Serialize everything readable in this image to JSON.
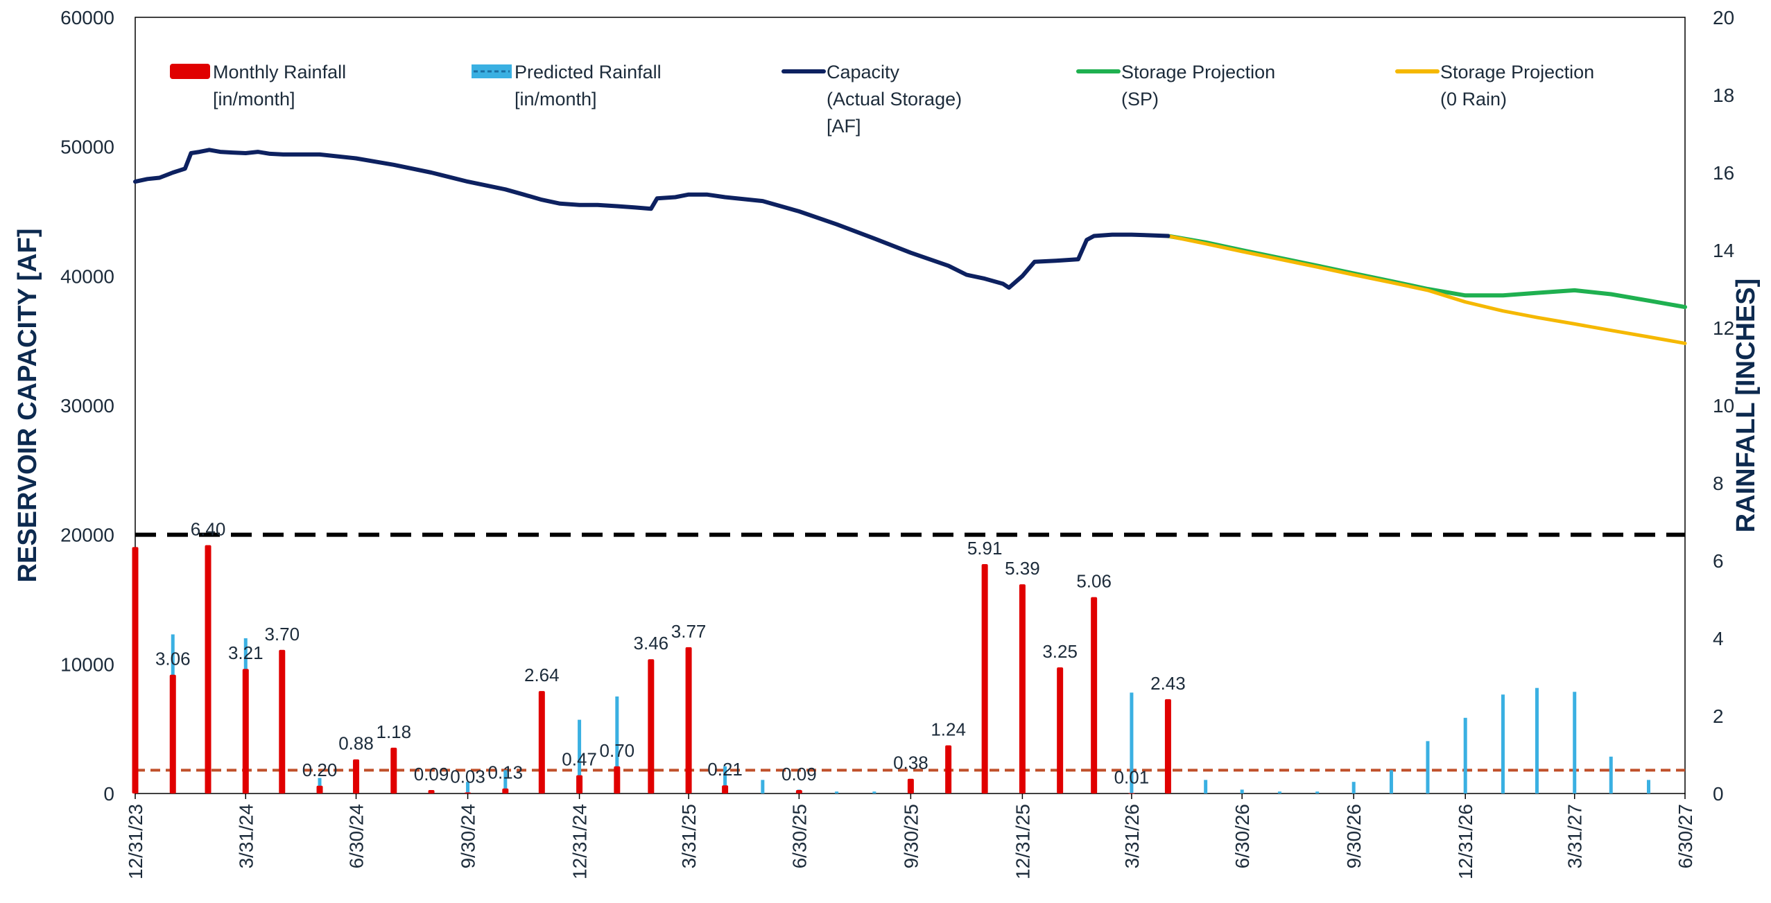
{
  "chart_data": {
    "type": "line",
    "title": "",
    "ylabel": "RESERVOIR CAPACITY [AF]",
    "y2label": "RAINFALL [INCHES]",
    "ylim": [
      0,
      60000
    ],
    "y2lim": [
      0,
      20
    ],
    "yticks": [
      "0",
      "10000",
      "20000",
      "30000",
      "40000",
      "50000",
      "60000"
    ],
    "y2ticks": [
      "0",
      "2",
      "4",
      "6",
      "8",
      "10",
      "12",
      "14",
      "16",
      "18",
      "20"
    ],
    "xlim": [
      "12/31/23",
      "6/30/27"
    ],
    "xticks": [
      "12/31/23",
      "3/31/24",
      "6/30/24",
      "9/30/24",
      "12/31/24",
      "3/31/25",
      "6/30/25",
      "9/30/25",
      "12/31/25",
      "3/31/26",
      "6/30/26",
      "9/30/26",
      "12/31/26",
      "3/31/27",
      "6/30/27"
    ],
    "grid": false,
    "legend": {
      "position": "top",
      "items": [
        {
          "lines": [
            "Monthly Rainfall",
            "[in/month]"
          ],
          "color": "#e00000",
          "kind": "bar"
        },
        {
          "lines": [
            "Predicted Rainfall",
            "[in/month]"
          ],
          "color": "#3ab0e2",
          "kind": "bar-dashed"
        },
        {
          "lines": [
            "Capacity",
            "(Actual Storage)",
            "[AF]"
          ],
          "color": "#0d2160",
          "kind": "line"
        },
        {
          "lines": [
            "Storage Projection",
            "(SP)"
          ],
          "color": "#1fb050",
          "kind": "line"
        },
        {
          "lines": [
            "Storage Projection",
            "(0 Rain)"
          ],
          "color": "#f5b800",
          "kind": "line"
        }
      ]
    },
    "reference_lines": [
      {
        "axis": "left",
        "value": 20000,
        "color": "#000000",
        "style": "dashed"
      },
      {
        "axis": "left",
        "value": 1800,
        "color": "#c0502a",
        "style": "dashed"
      }
    ],
    "monthly_rainfall": {
      "name": "Monthly Rainfall [in/month]",
      "axis": "right",
      "color": "#e00000",
      "points": [
        {
          "x": "12/31/23",
          "y": 6.35,
          "label": ""
        },
        {
          "x": "1/31/24",
          "y": 3.06,
          "label": "3.06"
        },
        {
          "x": "2/29/24",
          "y": 6.4,
          "label": "6.40"
        },
        {
          "x": "3/31/24",
          "y": 3.21,
          "label": "3.21"
        },
        {
          "x": "4/30/24",
          "y": 3.7,
          "label": "3.70"
        },
        {
          "x": "5/31/24",
          "y": 0.2,
          "label": "0.20"
        },
        {
          "x": "6/30/24",
          "y": 0.88,
          "label": "0.88"
        },
        {
          "x": "7/31/24",
          "y": 1.18,
          "label": "1.18"
        },
        {
          "x": "8/31/24",
          "y": 0.09,
          "label": "0.09"
        },
        {
          "x": "9/30/24",
          "y": 0.03,
          "label": "0.03"
        },
        {
          "x": "10/31/24",
          "y": 0.13,
          "label": "0.13"
        },
        {
          "x": "11/30/24",
          "y": 2.64,
          "label": "2.64"
        },
        {
          "x": "12/31/24",
          "y": 0.47,
          "label": "0.47"
        },
        {
          "x": "1/31/25",
          "y": 0.7,
          "label": "0.70"
        },
        {
          "x": "2/28/25",
          "y": 3.46,
          "label": "3.46"
        },
        {
          "x": "3/31/25",
          "y": 3.77,
          "label": "3.77"
        },
        {
          "x": "4/30/25",
          "y": 0.21,
          "label": "0.21"
        },
        {
          "x": "6/30/25",
          "y": 0.09,
          "label": "0.09"
        },
        {
          "x": "9/30/25",
          "y": 0.38,
          "label": "0.38"
        },
        {
          "x": "10/31/25",
          "y": 1.24,
          "label": "1.24"
        },
        {
          "x": "11/30/25",
          "y": 5.91,
          "label": "5.91"
        },
        {
          "x": "12/31/25",
          "y": 5.39,
          "label": "5.39"
        },
        {
          "x": "1/31/26",
          "y": 3.25,
          "label": "3.25"
        },
        {
          "x": "2/28/26",
          "y": 5.06,
          "label": "5.06"
        },
        {
          "x": "3/31/26",
          "y": 0.01,
          "label": "0.01"
        },
        {
          "x": "4/30/26",
          "y": 2.43,
          "label": "2.43"
        }
      ]
    },
    "predicted_rainfall": {
      "name": "Predicted Rainfall [in/month]",
      "axis": "right",
      "color": "#3ab0e2",
      "points": [
        {
          "x": "1/31/24",
          "y": 4.1
        },
        {
          "x": "2/29/24",
          "y": 4.5
        },
        {
          "x": "3/31/24",
          "y": 4.0
        },
        {
          "x": "4/30/24",
          "y": 1.1
        },
        {
          "x": "5/31/24",
          "y": 0.4
        },
        {
          "x": "6/30/24",
          "y": 0.1
        },
        {
          "x": "7/31/24",
          "y": 0.05
        },
        {
          "x": "8/31/24",
          "y": 0.05
        },
        {
          "x": "9/30/24",
          "y": 0.3
        },
        {
          "x": "10/31/24",
          "y": 0.6
        },
        {
          "x": "11/30/24",
          "y": 1.3
        },
        {
          "x": "12/31/24",
          "y": 1.9
        },
        {
          "x": "1/31/25",
          "y": 2.5
        },
        {
          "x": "2/28/25",
          "y": 2.7
        },
        {
          "x": "3/31/25",
          "y": 2.6
        },
        {
          "x": "4/30/25",
          "y": 0.7
        },
        {
          "x": "5/31/25",
          "y": 0.35
        },
        {
          "x": "6/30/25",
          "y": 0.1
        },
        {
          "x": "7/31/25",
          "y": 0.05
        },
        {
          "x": "8/31/25",
          "y": 0.05
        },
        {
          "x": "9/30/25",
          "y": 0.3
        },
        {
          "x": "10/31/25",
          "y": 0.6
        },
        {
          "x": "11/30/25",
          "y": 1.3
        },
        {
          "x": "12/31/25",
          "y": 1.9
        },
        {
          "x": "1/31/26",
          "y": 2.5
        },
        {
          "x": "2/28/26",
          "y": 2.7
        },
        {
          "x": "3/31/26",
          "y": 2.6
        },
        {
          "x": "4/30/26",
          "y": 1.0
        },
        {
          "x": "5/31/26",
          "y": 0.35
        },
        {
          "x": "6/30/26",
          "y": 0.1
        },
        {
          "x": "7/31/26",
          "y": 0.05
        },
        {
          "x": "8/31/26",
          "y": 0.05
        },
        {
          "x": "9/30/26",
          "y": 0.3
        },
        {
          "x": "10/31/26",
          "y": 0.6
        },
        {
          "x": "11/30/26",
          "y": 1.35
        },
        {
          "x": "12/31/26",
          "y": 1.95
        },
        {
          "x": "1/31/27",
          "y": 2.55
        },
        {
          "x": "2/28/27",
          "y": 2.72
        },
        {
          "x": "3/31/27",
          "y": 2.62
        },
        {
          "x": "4/30/27",
          "y": 0.95
        },
        {
          "x": "5/31/27",
          "y": 0.35
        }
      ]
    },
    "capacity": {
      "name": "Capacity (Actual Storage) [AF]",
      "axis": "left",
      "color": "#0d2160",
      "points": [
        [
          "12/31/23",
          47300
        ],
        [
          "1/10/24",
          47500
        ],
        [
          "1/20/24",
          47600
        ],
        [
          "1/31/24",
          48000
        ],
        [
          "2/10/24",
          48300
        ],
        [
          "2/15/24",
          49500
        ],
        [
          "2/22/24",
          49600
        ],
        [
          "3/1/24",
          49750
        ],
        [
          "3/10/24",
          49600
        ],
        [
          "3/20/24",
          49550
        ],
        [
          "3/31/24",
          49500
        ],
        [
          "4/10/24",
          49600
        ],
        [
          "4/20/24",
          49450
        ],
        [
          "5/1/24",
          49400
        ],
        [
          "5/31/24",
          49400
        ],
        [
          "6/30/24",
          49100
        ],
        [
          "7/31/24",
          48600
        ],
        [
          "8/31/24",
          48000
        ],
        [
          "9/30/24",
          47300
        ],
        [
          "10/31/24",
          46700
        ],
        [
          "11/15/24",
          46300
        ],
        [
          "11/30/24",
          45900
        ],
        [
          "12/15/24",
          45600
        ],
        [
          "12/31/24",
          45500
        ],
        [
          "1/15/25",
          45500
        ],
        [
          "1/31/25",
          45400
        ],
        [
          "2/15/25",
          45300
        ],
        [
          "2/28/25",
          45200
        ],
        [
          "3/5/25",
          46000
        ],
        [
          "3/20/25",
          46100
        ],
        [
          "3/31/25",
          46300
        ],
        [
          "4/15/25",
          46300
        ],
        [
          "4/30/25",
          46100
        ],
        [
          "5/31/25",
          45800
        ],
        [
          "6/30/25",
          45000
        ],
        [
          "7/31/25",
          44000
        ],
        [
          "8/31/25",
          42900
        ],
        [
          "9/30/25",
          41800
        ],
        [
          "10/31/25",
          40800
        ],
        [
          "11/15/25",
          40100
        ],
        [
          "11/30/25",
          39800
        ],
        [
          "12/15/25",
          39400
        ],
        [
          "12/20/25",
          39100
        ],
        [
          "12/31/25",
          40000
        ],
        [
          "1/10/26",
          41100
        ],
        [
          "1/31/26",
          41200
        ],
        [
          "2/15/26",
          41300
        ],
        [
          "2/22/26",
          42800
        ],
        [
          "2/28/26",
          43100
        ],
        [
          "3/15/26",
          43200
        ],
        [
          "3/31/26",
          43200
        ],
        [
          "4/15/26",
          43150
        ],
        [
          "4/30/26",
          43100
        ]
      ]
    },
    "storage_projection_sp": {
      "name": "Storage Projection (SP)",
      "axis": "left",
      "color": "#1fb050",
      "points": [
        [
          "4/30/26",
          43100
        ],
        [
          "5/31/26",
          42600
        ],
        [
          "6/30/26",
          42000
        ],
        [
          "7/31/26",
          41400
        ],
        [
          "8/31/26",
          40800
        ],
        [
          "9/30/26",
          40200
        ],
        [
          "10/31/26",
          39600
        ],
        [
          "11/30/26",
          39000
        ],
        [
          "12/31/26",
          38500
        ],
        [
          "1/31/27",
          38500
        ],
        [
          "2/28/27",
          38700
        ],
        [
          "3/31/27",
          38900
        ],
        [
          "4/30/27",
          38600
        ],
        [
          "5/31/27",
          38100
        ],
        [
          "6/30/27",
          37600
        ]
      ]
    },
    "storage_projection_0_rain": {
      "name": "Storage Projection (0 Rain)",
      "axis": "left",
      "color": "#f5b800",
      "points": [
        [
          "4/30/26",
          43100
        ],
        [
          "5/31/26",
          42500
        ],
        [
          "6/30/26",
          41900
        ],
        [
          "7/31/26",
          41300
        ],
        [
          "8/31/26",
          40700
        ],
        [
          "9/30/26",
          40100
        ],
        [
          "10/31/26",
          39500
        ],
        [
          "11/30/26",
          38900
        ],
        [
          "12/31/26",
          38000
        ],
        [
          "1/31/27",
          37300
        ],
        [
          "2/28/27",
          36800
        ],
        [
          "3/31/27",
          36300
        ],
        [
          "4/30/27",
          35800
        ],
        [
          "5/31/27",
          35300
        ],
        [
          "6/30/27",
          34800
        ]
      ]
    }
  }
}
